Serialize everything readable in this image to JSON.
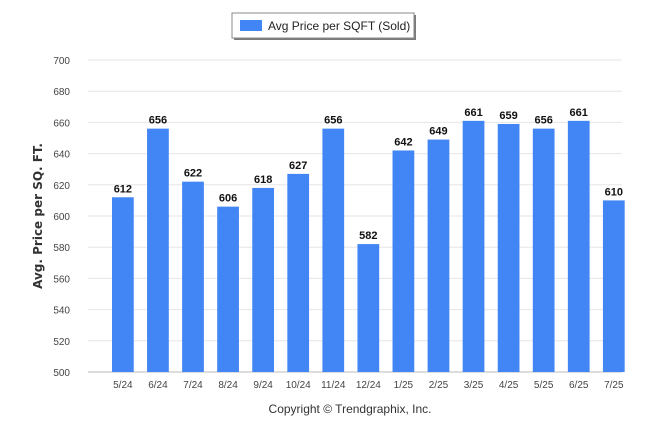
{
  "chart_data": {
    "type": "bar",
    "categories": [
      "5/24",
      "6/24",
      "7/24",
      "8/24",
      "9/24",
      "10/24",
      "11/24",
      "12/24",
      "1/25",
      "2/25",
      "3/25",
      "4/25",
      "5/25",
      "6/25",
      "7/25"
    ],
    "series": [
      {
        "name": "Avg Price per SQFT (Sold)",
        "values": [
          612,
          656,
          622,
          606,
          618,
          627,
          656,
          582,
          642,
          649,
          661,
          659,
          656,
          661,
          610
        ],
        "color": "#4285f4"
      }
    ],
    "data_labels": [
      "612",
      "656",
      "622",
      "606",
      "618",
      "627",
      "656",
      "582",
      "642",
      "649",
      "661",
      "659",
      "656",
      "661",
      "610"
    ],
    "y_ticks": [
      "500",
      "520",
      "540",
      "560",
      "580",
      "600",
      "620",
      "640",
      "660",
      "680",
      "700"
    ],
    "ylim": [
      500,
      700
    ],
    "ylabel": "Avg. Price per SQ. FT.",
    "xlabel": "",
    "grid": true,
    "legend_position": "top-center"
  },
  "footer": {
    "copyright": "Copyright © Trendgraphix, Inc."
  }
}
